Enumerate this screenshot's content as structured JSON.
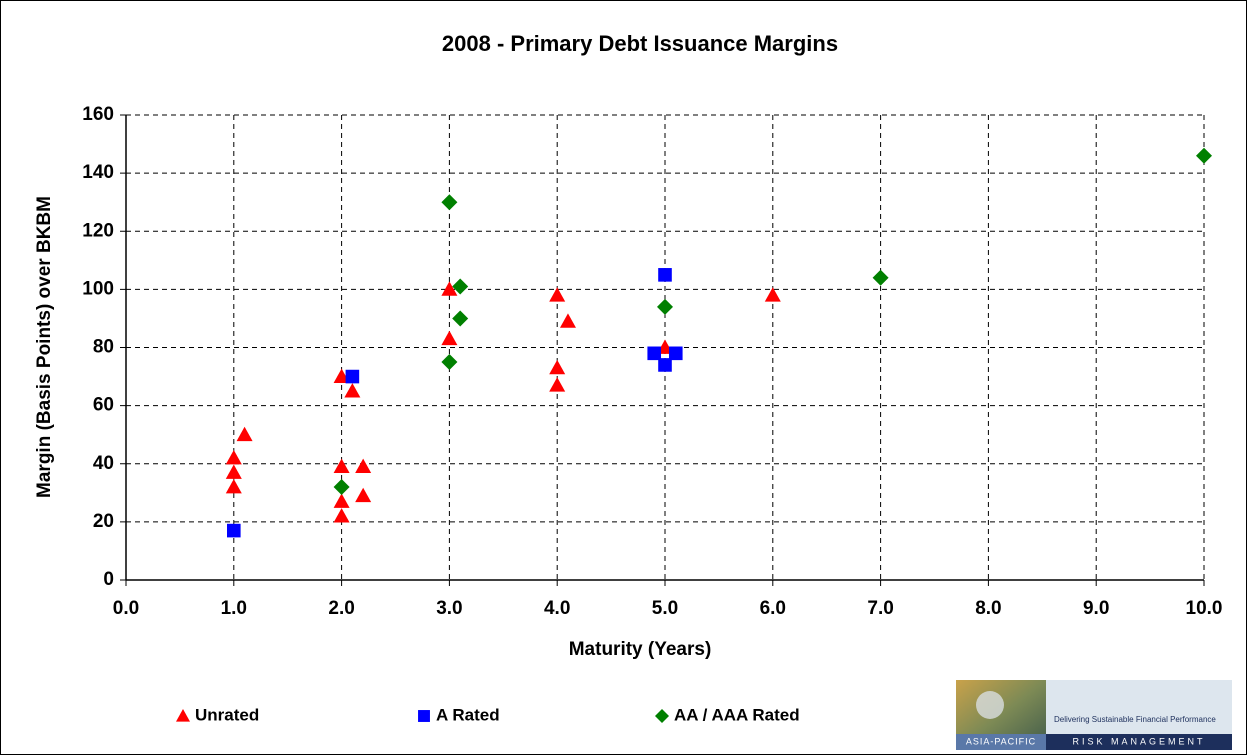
{
  "chart_data": {
    "type": "scatter",
    "title": "2008 - Primary Debt Issuance Margins",
    "x_label": "Maturity (Years)",
    "y_label": "Margin (Basis Points) over BKBM",
    "xlim": [
      0,
      10
    ],
    "ylim": [
      0,
      160
    ],
    "xticks": [
      {
        "value": 0,
        "label": "0.0"
      },
      {
        "value": 1,
        "label": "1.0"
      },
      {
        "value": 2,
        "label": "2.0"
      },
      {
        "value": 3,
        "label": "3.0"
      },
      {
        "value": 4,
        "label": "4.0"
      },
      {
        "value": 5,
        "label": "5.0"
      },
      {
        "value": 6,
        "label": "6.0"
      },
      {
        "value": 7,
        "label": "7.0"
      },
      {
        "value": 8,
        "label": "8.0"
      },
      {
        "value": 9,
        "label": "9.0"
      },
      {
        "value": 10,
        "label": "10.0"
      }
    ],
    "yticks": [
      0,
      20,
      40,
      60,
      80,
      100,
      120,
      140,
      160
    ],
    "grid": true,
    "legend": "bottom",
    "series": [
      {
        "name": "Unrated",
        "color": "#ff0000",
        "marker": "triangle",
        "x": [
          1.0,
          1.0,
          1.0,
          1.1,
          2.0,
          2.0,
          2.0,
          2.0,
          2.1,
          2.2,
          2.2,
          3.0,
          3.0,
          4.0,
          4.0,
          4.0,
          4.1,
          5.0,
          6.0
        ],
        "values": [
          42,
          37,
          32,
          50,
          70,
          39,
          27,
          22,
          65,
          39,
          29,
          100,
          83,
          98,
          73,
          67,
          89,
          80,
          98
        ]
      },
      {
        "name": "A Rated",
        "color": "#0000ff",
        "marker": "square",
        "x": [
          1.0,
          2.1,
          5.0,
          4.9,
          5.1,
          5.0
        ],
        "values": [
          17,
          70,
          105,
          78,
          78,
          74
        ]
      },
      {
        "name": "AA / AAA Rated",
        "color": "#008000",
        "marker": "diamond",
        "x": [
          2.0,
          3.0,
          3.0,
          3.1,
          3.1,
          5.0,
          7.0,
          10.0
        ],
        "values": [
          32,
          130,
          75,
          101,
          90,
          94,
          104,
          146
        ]
      }
    ]
  },
  "logo": {
    "tagline": "Delivering Sustainable Financial Performance",
    "left": "ASIA-PACIFIC",
    "right": "RISK MANAGEMENT"
  }
}
